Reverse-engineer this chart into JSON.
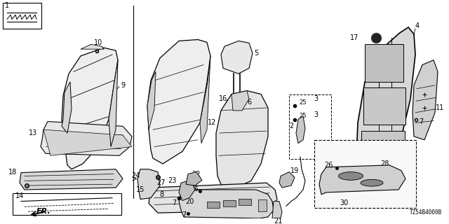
{
  "background_color": "#ffffff",
  "line_color": "#000000",
  "text_color": "#000000",
  "figsize": [
    6.4,
    3.2
  ],
  "dpi": 100,
  "diagram_ref": "TZ54B4000B"
}
